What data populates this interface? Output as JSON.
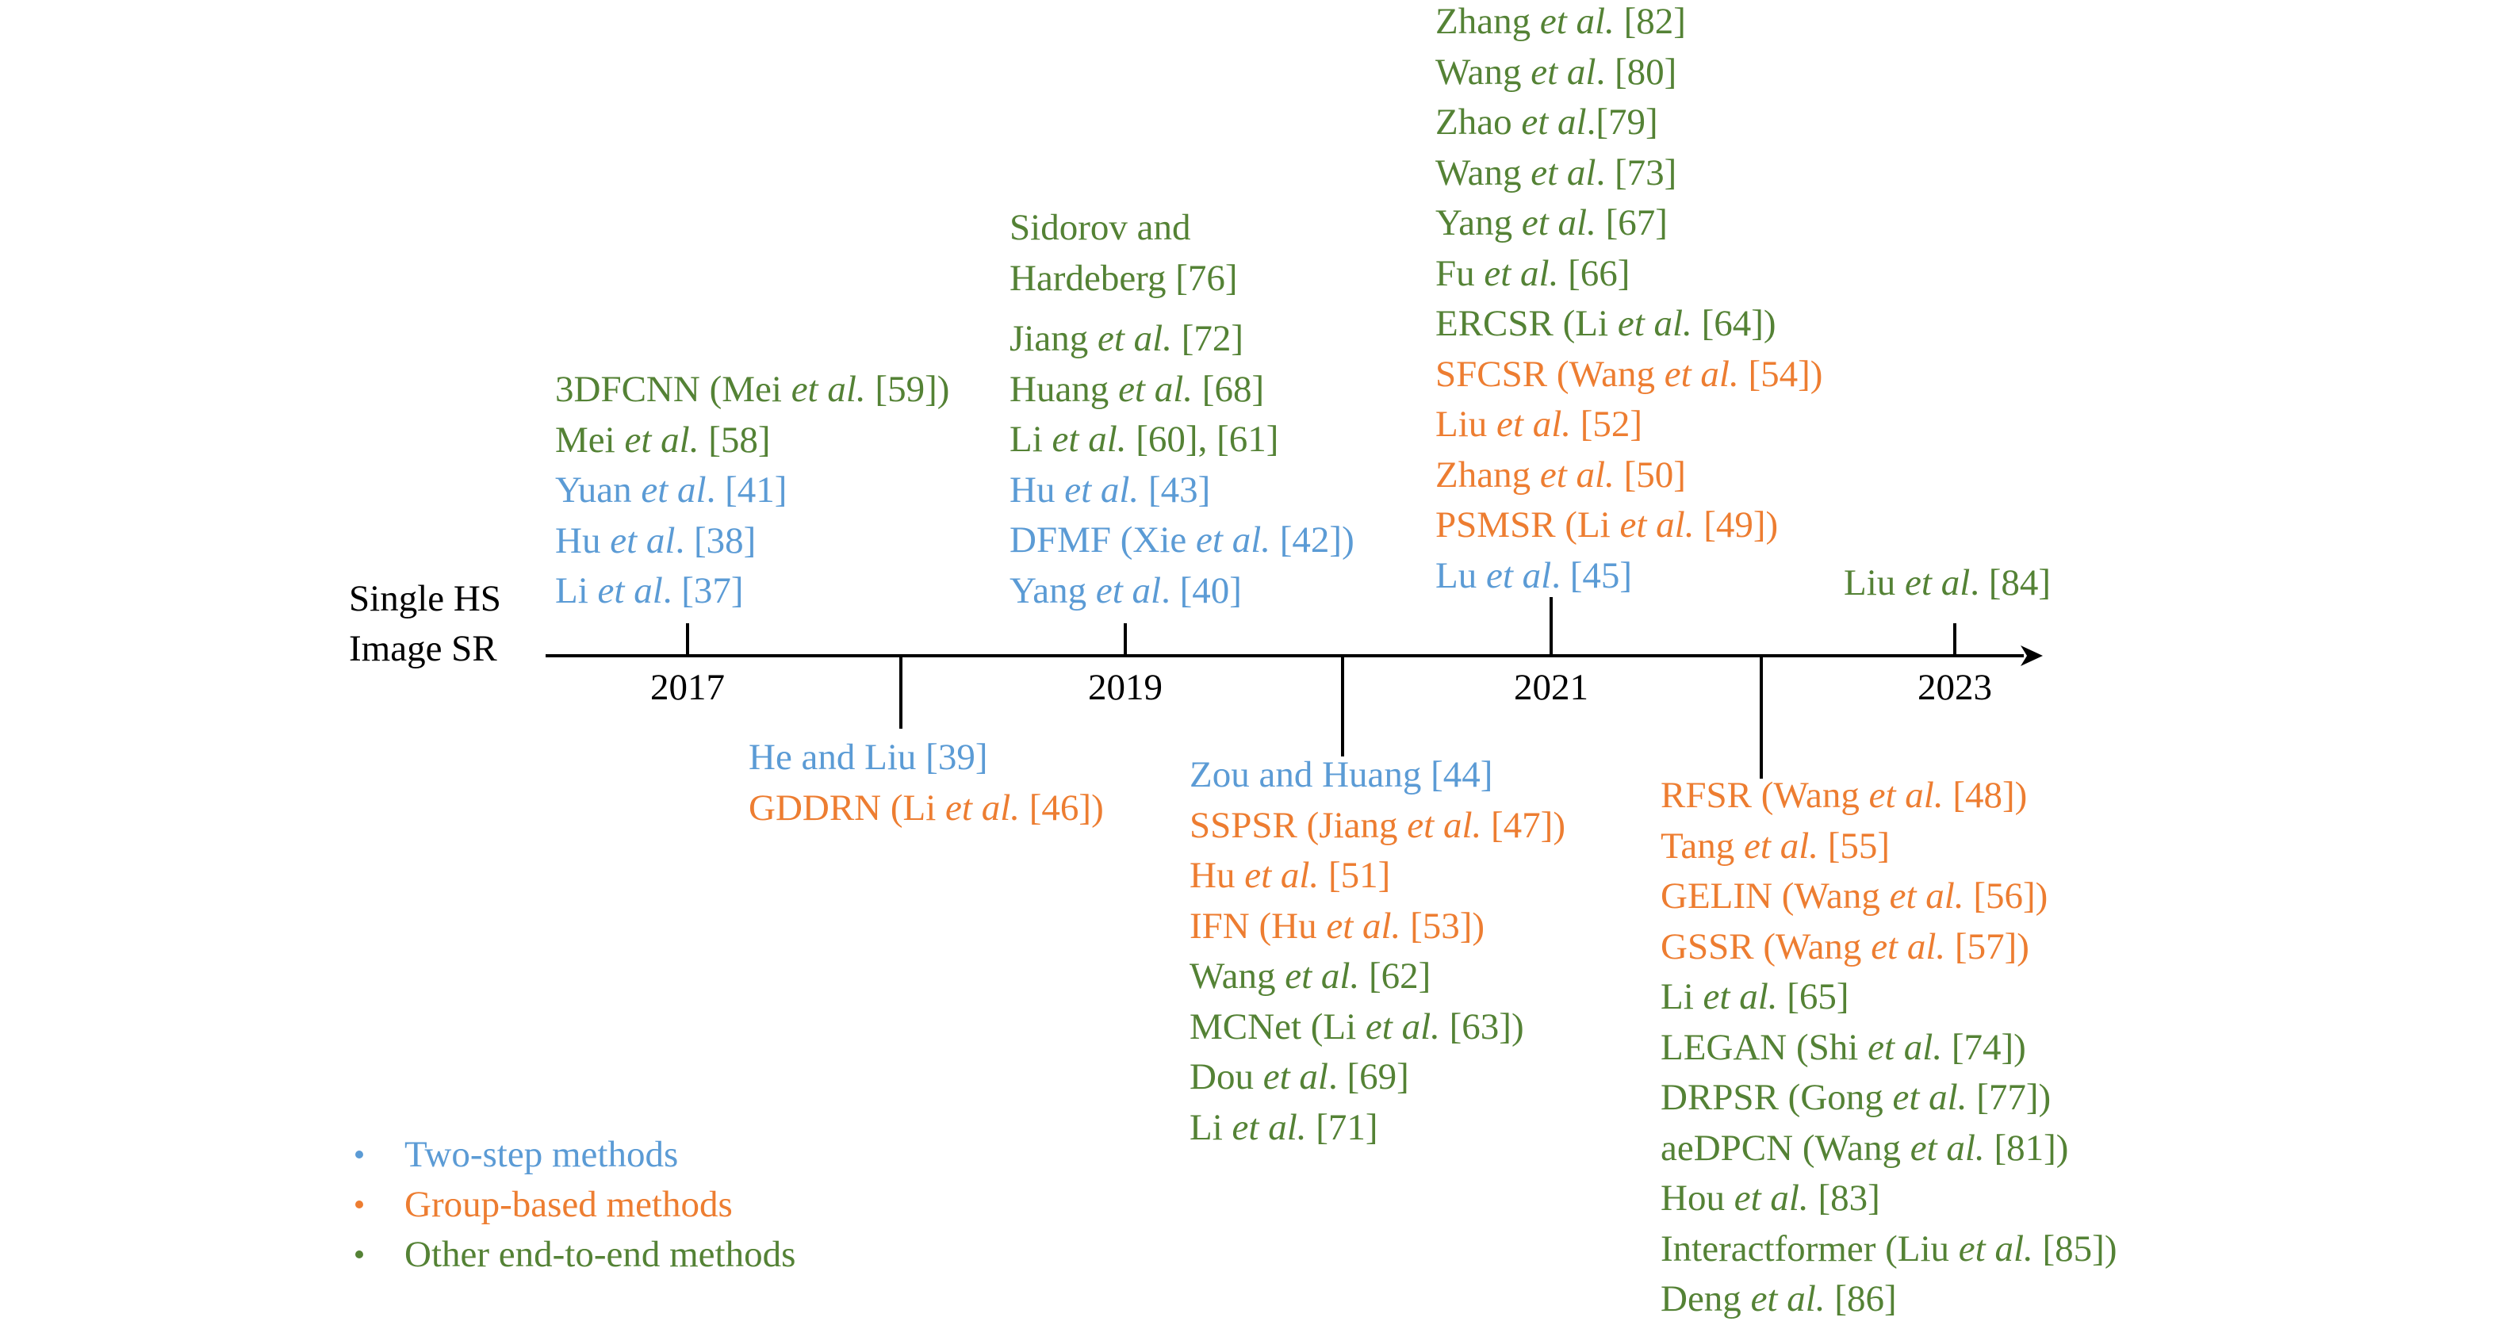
{
  "title": [
    "Single HS",
    "Image SR"
  ],
  "colors": {
    "two_step": "#5b9bd5",
    "group_based": "#ed7d31",
    "other_end_to_end": "#548235"
  },
  "years": [
    "2017",
    "2019",
    "2021",
    "2023"
  ],
  "groups": {
    "g2017": [
      {
        "cat": "other",
        "parts": [
          {
            "t": "3DFCNN (Mei "
          },
          {
            "t": "et al.",
            "i": true
          },
          {
            "t": " [59])"
          }
        ]
      },
      {
        "cat": "other",
        "parts": [
          {
            "t": "Mei "
          },
          {
            "t": "et al.",
            "i": true
          },
          {
            "t": " [58]"
          }
        ]
      },
      {
        "cat": "two",
        "parts": [
          {
            "t": "Yuan "
          },
          {
            "t": "et al",
            "i": true
          },
          {
            "t": ". [41]"
          }
        ]
      },
      {
        "cat": "two",
        "parts": [
          {
            "t": "Hu "
          },
          {
            "t": "et al",
            "i": true
          },
          {
            "t": ". [38]"
          }
        ]
      },
      {
        "cat": "two",
        "parts": [
          {
            "t": "Li "
          },
          {
            "t": "et al",
            "i": true
          },
          {
            "t": ". [37]"
          }
        ]
      }
    ],
    "g2018": [
      {
        "cat": "two",
        "parts": [
          {
            "t": "He and Liu [39]"
          }
        ]
      },
      {
        "cat": "grp",
        "parts": [
          {
            "t": "GDDRN (Li "
          },
          {
            "t": "et al.",
            "i": true
          },
          {
            "t": " [46])"
          }
        ]
      }
    ],
    "g2019_top": [
      {
        "cat": "other",
        "parts": [
          {
            "t": "Sidorov and"
          }
        ]
      },
      {
        "cat": "other",
        "parts": [
          {
            "t": "Hardeberg [76]"
          }
        ]
      }
    ],
    "g2019": [
      {
        "cat": "other",
        "parts": [
          {
            "t": "Jiang "
          },
          {
            "t": "et al.",
            "i": true
          },
          {
            "t": " [72]"
          }
        ]
      },
      {
        "cat": "other",
        "parts": [
          {
            "t": "Huang "
          },
          {
            "t": "et al.",
            "i": true
          },
          {
            "t": " [68]"
          }
        ]
      },
      {
        "cat": "other",
        "parts": [
          {
            "t": "Li "
          },
          {
            "t": "et al.",
            "i": true
          },
          {
            "t": " [60], [61]"
          }
        ]
      },
      {
        "cat": "two",
        "parts": [
          {
            "t": "Hu "
          },
          {
            "t": "et al.",
            "i": true
          },
          {
            "t": " [43]"
          }
        ]
      },
      {
        "cat": "two",
        "parts": [
          {
            "t": "DFMF (Xie "
          },
          {
            "t": "et al.",
            "i": true
          },
          {
            "t": " [42])"
          }
        ]
      },
      {
        "cat": "two",
        "parts": [
          {
            "t": "Yang "
          },
          {
            "t": "et al",
            "i": true
          },
          {
            "t": ". [40]"
          }
        ]
      }
    ],
    "g2020": [
      {
        "cat": "two",
        "parts": [
          {
            "t": "Zou and Huang [44]"
          }
        ]
      },
      {
        "cat": "grp",
        "parts": [
          {
            "t": "SSPSR (Jiang "
          },
          {
            "t": "et al.",
            "i": true
          },
          {
            "t": " [47])"
          }
        ]
      },
      {
        "cat": "grp",
        "parts": [
          {
            "t": "Hu "
          },
          {
            "t": "et al.",
            "i": true
          },
          {
            "t": " [51]"
          }
        ]
      },
      {
        "cat": "grp",
        "parts": [
          {
            "t": "IFN (Hu "
          },
          {
            "t": "et al.",
            "i": true
          },
          {
            "t": " [53])"
          }
        ]
      },
      {
        "cat": "other",
        "parts": [
          {
            "t": "Wang "
          },
          {
            "t": "et al.",
            "i": true
          },
          {
            "t": " [62]"
          }
        ]
      },
      {
        "cat": "other",
        "parts": [
          {
            "t": "MCNet (Li "
          },
          {
            "t": "et al.",
            "i": true
          },
          {
            "t": " [63])"
          }
        ]
      },
      {
        "cat": "other",
        "parts": [
          {
            "t": "Dou "
          },
          {
            "t": "et al",
            "i": true
          },
          {
            "t": ". [69]"
          }
        ]
      },
      {
        "cat": "other",
        "parts": [
          {
            "t": "Li "
          },
          {
            "t": "et al.",
            "i": true
          },
          {
            "t": " [71]"
          }
        ]
      }
    ],
    "g2021": [
      {
        "cat": "other",
        "parts": [
          {
            "t": "Zhang "
          },
          {
            "t": "et al.",
            "i": true
          },
          {
            "t": " [82]"
          }
        ]
      },
      {
        "cat": "other",
        "parts": [
          {
            "t": "Wang "
          },
          {
            "t": "et al",
            "i": true
          },
          {
            "t": ". [80]"
          }
        ]
      },
      {
        "cat": "other",
        "parts": [
          {
            "t": "Zhao "
          },
          {
            "t": "et al",
            "i": true
          },
          {
            "t": ".[79]"
          }
        ]
      },
      {
        "cat": "other",
        "parts": [
          {
            "t": "Wang "
          },
          {
            "t": "et al",
            "i": true
          },
          {
            "t": ". [73]"
          }
        ]
      },
      {
        "cat": "other",
        "parts": [
          {
            "t": "Yang "
          },
          {
            "t": "et al.",
            "i": true
          },
          {
            "t": " [67]"
          }
        ]
      },
      {
        "cat": "other",
        "parts": [
          {
            "t": "Fu "
          },
          {
            "t": "et al.",
            "i": true
          },
          {
            "t": " [66]"
          }
        ]
      },
      {
        "cat": "other",
        "parts": [
          {
            "t": "ERCSR (Li "
          },
          {
            "t": "et al.",
            "i": true
          },
          {
            "t": " [64])"
          }
        ]
      },
      {
        "cat": "grp",
        "parts": [
          {
            "t": "SFCSR (Wang "
          },
          {
            "t": "et al.",
            "i": true
          },
          {
            "t": " [54])"
          }
        ]
      },
      {
        "cat": "grp",
        "parts": [
          {
            "t": "Liu "
          },
          {
            "t": "et al.",
            "i": true
          },
          {
            "t": " [52]"
          }
        ]
      },
      {
        "cat": "grp",
        "parts": [
          {
            "t": "Zhang "
          },
          {
            "t": "et al.",
            "i": true
          },
          {
            "t": " [50]"
          }
        ]
      },
      {
        "cat": "grp",
        "parts": [
          {
            "t": "PSMSR (Li "
          },
          {
            "t": "et al.",
            "i": true
          },
          {
            "t": " [49])"
          }
        ]
      },
      {
        "cat": "two",
        "parts": [
          {
            "t": "Lu "
          },
          {
            "t": "et al",
            "i": true
          },
          {
            "t": ". [45]"
          }
        ]
      }
    ],
    "g2022": [
      {
        "cat": "grp",
        "parts": [
          {
            "t": "RFSR (Wang "
          },
          {
            "t": "et al.",
            "i": true
          },
          {
            "t": " [48])"
          }
        ]
      },
      {
        "cat": "grp",
        "parts": [
          {
            "t": "Tang "
          },
          {
            "t": "et al.",
            "i": true
          },
          {
            "t": " [55]"
          }
        ]
      },
      {
        "cat": "grp",
        "parts": [
          {
            "t": "GELIN (Wang "
          },
          {
            "t": "et al.",
            "i": true
          },
          {
            "t": " [56])"
          }
        ]
      },
      {
        "cat": "grp",
        "parts": [
          {
            "t": "GSSR (Wang "
          },
          {
            "t": "et al.",
            "i": true
          },
          {
            "t": " [57])"
          }
        ]
      },
      {
        "cat": "other",
        "parts": [
          {
            "t": "Li "
          },
          {
            "t": "et al.",
            "i": true
          },
          {
            "t": " [65]"
          }
        ]
      },
      {
        "cat": "other",
        "parts": [
          {
            "t": "LEGAN (Shi "
          },
          {
            "t": "et al.",
            "i": true
          },
          {
            "t": " [74])"
          }
        ]
      },
      {
        "cat": "other",
        "parts": [
          {
            "t": "DRPSR (Gong "
          },
          {
            "t": "et al.",
            "i": true
          },
          {
            "t": " [77])"
          }
        ]
      },
      {
        "cat": "other",
        "parts": [
          {
            "t": "aeDPCN (Wang "
          },
          {
            "t": "et al.",
            "i": true
          },
          {
            "t": " [81])"
          }
        ]
      },
      {
        "cat": "other",
        "parts": [
          {
            "t": "Hou "
          },
          {
            "t": "et al.",
            "i": true
          },
          {
            "t": " [83]"
          }
        ]
      },
      {
        "cat": "other",
        "parts": [
          {
            "t": "Interactformer (Liu "
          },
          {
            "t": "et al.",
            "i": true
          },
          {
            "t": " [85])"
          }
        ]
      },
      {
        "cat": "other",
        "parts": [
          {
            "t": "Deng "
          },
          {
            "t": "et al.",
            "i": true
          },
          {
            "t": " [86]"
          }
        ]
      }
    ],
    "g2023": [
      {
        "cat": "other",
        "parts": [
          {
            "t": "Liu "
          },
          {
            "t": "et al",
            "i": true
          },
          {
            "t": ". [84]"
          }
        ]
      }
    ]
  },
  "legend": [
    {
      "cat": "two",
      "label": "Two-step methods"
    },
    {
      "cat": "grp",
      "label": "Group-based methods"
    },
    {
      "cat": "other",
      "label": "Other end-to-end methods"
    }
  ]
}
